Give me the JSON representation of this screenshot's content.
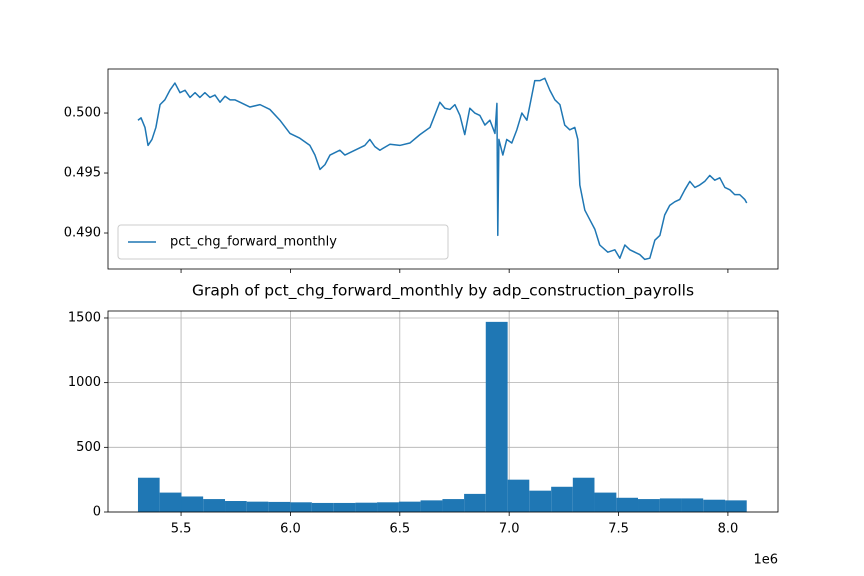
{
  "chart_data": [
    {
      "type": "line",
      "x": [
        5.303,
        5.317,
        5.335,
        5.349,
        5.367,
        5.385,
        5.404,
        5.426,
        5.449,
        5.472,
        5.495,
        5.518,
        5.541,
        5.564,
        5.586,
        5.609,
        5.632,
        5.655,
        5.678,
        5.701,
        5.724,
        5.746,
        5.769,
        5.815,
        5.861,
        5.906,
        5.952,
        5.998,
        6.043,
        6.089,
        6.112,
        6.135,
        6.158,
        6.181,
        6.226,
        6.249,
        6.295,
        6.34,
        6.363,
        6.386,
        6.409,
        6.455,
        6.5,
        6.546,
        6.592,
        6.638,
        6.683,
        6.706,
        6.729,
        6.752,
        6.775,
        6.797,
        6.82,
        6.843,
        6.866,
        6.889,
        6.912,
        6.935,
        6.944,
        6.948,
        6.953,
        6.971,
        6.989,
        7.012,
        7.035,
        7.058,
        7.081,
        7.104,
        7.117,
        7.14,
        7.163,
        7.186,
        7.209,
        7.232,
        7.254,
        7.277,
        7.3,
        7.314,
        7.323,
        7.346,
        7.369,
        7.392,
        7.414,
        7.451,
        7.483,
        7.506,
        7.529,
        7.552,
        7.597,
        7.62,
        7.643,
        7.666,
        7.689,
        7.711,
        7.734,
        7.757,
        7.78,
        7.803,
        7.826,
        7.849,
        7.871,
        7.894,
        7.917,
        7.94,
        7.963,
        7.986,
        8.009,
        8.031,
        8.054,
        8.077,
        8.086
      ],
      "series": [
        {
          "name": "pct_chg_forward_monthly",
          "color": "#1f77b4",
          "values": [
            0.4994,
            0.4996,
            0.4988,
            0.4973,
            0.4978,
            0.4988,
            0.5007,
            0.5011,
            0.5019,
            0.5025,
            0.5017,
            0.5019,
            0.5013,
            0.5017,
            0.5013,
            0.5017,
            0.5013,
            0.5015,
            0.5009,
            0.5014,
            0.5011,
            0.5011,
            0.5009,
            0.5005,
            0.5007,
            0.5003,
            0.4994,
            0.4983,
            0.4979,
            0.4973,
            0.4965,
            0.4953,
            0.4957,
            0.4965,
            0.4969,
            0.4965,
            0.4969,
            0.4973,
            0.4978,
            0.4972,
            0.4969,
            0.4974,
            0.4973,
            0.4975,
            0.4982,
            0.4988,
            0.5009,
            0.5004,
            0.5003,
            0.5007,
            0.4998,
            0.4982,
            0.5004,
            0.5,
            0.4998,
            0.499,
            0.4994,
            0.4983,
            0.5008,
            0.4898,
            0.4978,
            0.4965,
            0.4978,
            0.4975,
            0.4986,
            0.5,
            0.4994,
            0.5015,
            0.5027,
            0.5027,
            0.5029,
            0.5019,
            0.5011,
            0.5007,
            0.499,
            0.4986,
            0.4988,
            0.4978,
            0.494,
            0.4919,
            0.4911,
            0.4903,
            0.489,
            0.4884,
            0.4886,
            0.4879,
            0.489,
            0.4886,
            0.4882,
            0.4878,
            0.4879,
            0.4894,
            0.4898,
            0.4915,
            0.4923,
            0.4926,
            0.4928,
            0.4936,
            0.4943,
            0.4938,
            0.494,
            0.4943,
            0.4948,
            0.4944,
            0.4946,
            0.4938,
            0.4936,
            0.4932,
            0.4932,
            0.4928,
            0.4925
          ]
        }
      ],
      "xlim": [
        5.166,
        8.229
      ],
      "xticks": [
        5.5,
        6.0,
        6.5,
        7.0,
        7.5,
        8.0
      ],
      "ylim": [
        0.487,
        0.50367
      ],
      "yticks": [
        {
          "value": 0.49,
          "label": "0.490"
        },
        {
          "value": 0.495,
          "label": "0.495"
        },
        {
          "value": 0.5,
          "label": "0.500"
        }
      ],
      "grid": false,
      "legend": "lower left"
    },
    {
      "type": "histogram",
      "title": "Graph of pct_chg_forward_monthly by adp_construction_payrolls",
      "bins": [
        5.303,
        5.402,
        5.502,
        5.601,
        5.701,
        5.8,
        5.899,
        5.999,
        6.098,
        6.198,
        6.297,
        6.396,
        6.496,
        6.595,
        6.695,
        6.794,
        6.893,
        6.993,
        7.092,
        7.192,
        7.291,
        7.39,
        7.49,
        7.589,
        7.689,
        7.788,
        7.887,
        7.987,
        8.086
      ],
      "values": [
        265,
        150,
        120,
        100,
        85,
        80,
        78,
        75,
        70,
        70,
        72,
        75,
        80,
        90,
        100,
        140,
        1470,
        250,
        165,
        195,
        265,
        150,
        110,
        100,
        105,
        105,
        95,
        90
      ],
      "color": "#1f77b4",
      "xlim": [
        5.166,
        8.229
      ],
      "xticks": [
        {
          "value": 5.5,
          "label": "5.5"
        },
        {
          "value": 6,
          "label": "6.0"
        },
        {
          "value": 6.5,
          "label": "6.5"
        },
        {
          "value": 7,
          "label": "7.0"
        },
        {
          "value": 7.5,
          "label": "7.5"
        },
        {
          "value": 8,
          "label": "8.0"
        }
      ],
      "x_offset_label": "1e6",
      "ylim": [
        0,
        1554
      ],
      "yticks": [
        0,
        500,
        1000,
        1500
      ],
      "grid": true
    }
  ]
}
